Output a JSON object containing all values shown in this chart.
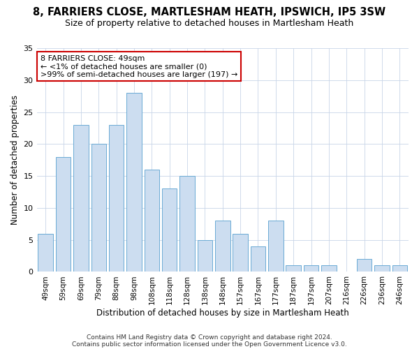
{
  "title": "8, FARRIERS CLOSE, MARTLESHAM HEATH, IPSWICH, IP5 3SW",
  "subtitle": "Size of property relative to detached houses in Martlesham Heath",
  "xlabel": "Distribution of detached houses by size in Martlesham Heath",
  "ylabel": "Number of detached properties",
  "categories": [
    "49sqm",
    "59sqm",
    "69sqm",
    "79sqm",
    "88sqm",
    "98sqm",
    "108sqm",
    "118sqm",
    "128sqm",
    "138sqm",
    "148sqm",
    "157sqm",
    "167sqm",
    "177sqm",
    "187sqm",
    "197sqm",
    "207sqm",
    "216sqm",
    "226sqm",
    "236sqm",
    "246sqm"
  ],
  "values": [
    6,
    18,
    23,
    20,
    23,
    28,
    16,
    13,
    15,
    5,
    8,
    6,
    4,
    8,
    1,
    1,
    1,
    0,
    2,
    1,
    1
  ],
  "bar_color": "#ccddf0",
  "bar_edge_color": "#6aaad4",
  "annotation_text": "8 FARRIERS CLOSE: 49sqm\n← <1% of detached houses are smaller (0)\n>99% of semi-detached houses are larger (197) →",
  "annotation_box_color": "#ffffff",
  "annotation_box_edge": "#cc0000",
  "footer1": "Contains HM Land Registry data © Crown copyright and database right 2024.",
  "footer2": "Contains public sector information licensed under the Open Government Licence v3.0.",
  "ylim": [
    0,
    35
  ],
  "yticks": [
    0,
    5,
    10,
    15,
    20,
    25,
    30,
    35
  ],
  "background_color": "#ffffff",
  "grid_color": "#c8d4e8"
}
